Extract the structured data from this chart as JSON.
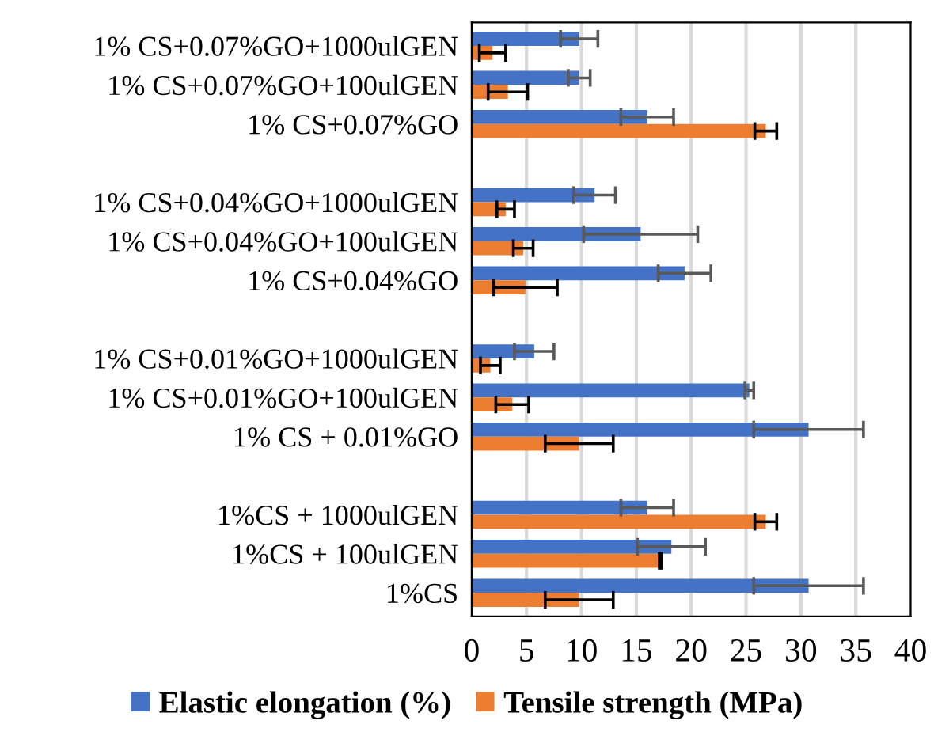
{
  "chart_data": {
    "type": "bar",
    "orientation": "horizontal",
    "categories": [
      "1% CS+0.07%GO+1000ulGEN",
      "1% CS+0.07%GO+100ulGEN",
      "1% CS+0.07%GO",
      null,
      "1% CS+0.04%GO+1000ulGEN",
      "1% CS+0.04%GO+100ulGEN",
      "1% CS+0.04%GO",
      null,
      "1% CS+0.01%GO+1000ulGEN",
      "1% CS+0.01%GO+100ulGEN",
      "1% CS + 0.01%GO",
      null,
      "1%CS + 1000ulGEN",
      "1%CS + 100ulGEN",
      "1%CS"
    ],
    "series": [
      {
        "name": "Elastic elongation (%)",
        "color": "#4472c4",
        "values": [
          9.8,
          9.8,
          16.0,
          null,
          11.2,
          15.4,
          19.4,
          null,
          5.7,
          25.3,
          30.7,
          null,
          16.0,
          18.2,
          30.7
        ],
        "errors": [
          1.7,
          1.0,
          2.4,
          null,
          1.9,
          5.2,
          2.4,
          null,
          1.8,
          0.4,
          5.0,
          null,
          2.4,
          3.1,
          5.0
        ]
      },
      {
        "name": "Tensile strength (MPa)",
        "color": "#ed7d31",
        "values": [
          1.9,
          3.3,
          26.8,
          null,
          3.1,
          4.7,
          4.9,
          null,
          1.7,
          3.7,
          9.8,
          null,
          26.8,
          17.2,
          9.8
        ],
        "errors": [
          1.2,
          1.8,
          1.0,
          null,
          0.8,
          0.9,
          2.9,
          null,
          0.9,
          1.5,
          3.1,
          null,
          1.0,
          0.1,
          3.1
        ]
      }
    ],
    "xlim": [
      0,
      40
    ],
    "xticks": [
      0,
      5,
      10,
      15,
      20,
      25,
      30,
      35,
      40
    ],
    "grid": "x",
    "legend": "bottom"
  }
}
